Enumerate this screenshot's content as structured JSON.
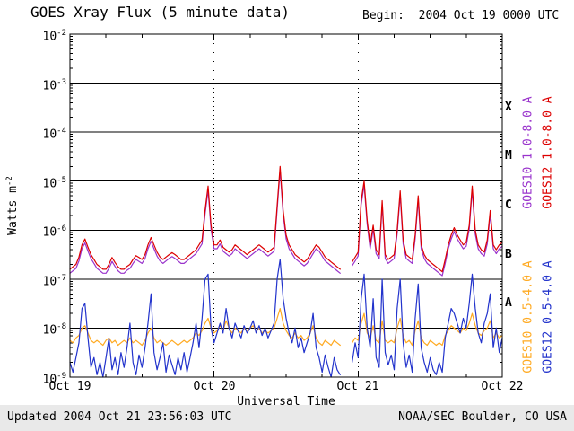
{
  "header": {
    "title": "GOES Xray Flux (5 minute data)",
    "begin_label": "Begin:  2004 Oct 19 0000 UTC"
  },
  "footer": {
    "updated": "Updated 2004 Oct 21 23:56:03 UTC",
    "source": "NOAA/SEC Boulder, CO USA"
  },
  "chart_data": {
    "type": "line",
    "title": "GOES Xray Flux (5 minute data)",
    "xlabel": "Universal Time",
    "ylabel": "Watts m^-2",
    "ylabel_base": "Watts m",
    "ylabel_exp": "-2",
    "y_scale": "log",
    "y_tick_exponents": [
      -2,
      -3,
      -4,
      -5,
      -6,
      -7,
      -8,
      -9
    ],
    "ylim_log": [
      -9,
      -2
    ],
    "x_unit": "hours since 2004 Oct 19 0000 UTC",
    "x_range_hours": [
      0,
      72
    ],
    "x_tick_labels": [
      "Oct 19",
      "Oct 20",
      "Oct 21",
      "Oct 22"
    ],
    "x_day_gridlines_hours": [
      24,
      48
    ],
    "flare_classes": [
      "X",
      "M",
      "C",
      "B",
      "A"
    ],
    "flare_class_band_centers_log": [
      -3.5,
      -4.5,
      -5.5,
      -6.5,
      -7.5
    ],
    "grid": "solid horizontal per decade, dotted vertical per day",
    "legend_position": "right, rotated",
    "series": [
      {
        "name": "GOES10 1.0-8.0 A",
        "color": "#9933cc",
        "t_step_hours": 0.5,
        "log_flux": [
          -6.88,
          -6.83,
          -6.78,
          -6.63,
          -6.38,
          -6.26,
          -6.43,
          -6.58,
          -6.68,
          -6.78,
          -6.83,
          -6.88,
          -6.88,
          -6.78,
          -6.64,
          -6.74,
          -6.83,
          -6.88,
          -6.88,
          -6.82,
          -6.78,
          -6.68,
          -6.6,
          -6.64,
          -6.68,
          -6.58,
          -6.38,
          -6.23,
          -6.38,
          -6.53,
          -6.63,
          -6.68,
          -6.63,
          -6.58,
          -6.54,
          -6.58,
          -6.63,
          -6.68,
          -6.68,
          -6.63,
          -6.58,
          -6.53,
          -6.48,
          -6.38,
          -6.28,
          -5.68,
          -5.18,
          -5.98,
          -6.38,
          -6.38,
          -6.28,
          -6.43,
          -6.48,
          -6.53,
          -6.48,
          -6.38,
          -6.43,
          -6.48,
          -6.53,
          -6.58,
          -6.53,
          -6.48,
          -6.43,
          -6.38,
          -6.43,
          -6.48,
          -6.53,
          -6.48,
          -6.43,
          -5.58,
          -4.78,
          -5.68,
          -6.18,
          -6.38,
          -6.48,
          -6.58,
          -6.63,
          -6.68,
          -6.73,
          -6.68,
          -6.58,
          -6.48,
          -6.38,
          -6.43,
          -6.53,
          -6.63,
          -6.68,
          -6.73,
          -6.78,
          -6.83,
          -6.88,
          null,
          null,
          null,
          -6.73,
          -6.63,
          -6.53,
          -5.48,
          -5.08,
          -5.88,
          -6.38,
          -5.98,
          -6.48,
          -6.58,
          -5.48,
          -6.58,
          -6.68,
          -6.63,
          -6.58,
          -6.08,
          -5.28,
          -6.28,
          -6.58,
          -6.63,
          -6.68,
          -6.18,
          -5.38,
          -6.38,
          -6.58,
          -6.68,
          -6.73,
          -6.78,
          -6.83,
          -6.88,
          -6.93,
          -6.68,
          -6.38,
          -6.18,
          -6.03,
          -6.18,
          -6.28,
          -6.38,
          -6.33,
          -5.98,
          -5.18,
          -6.08,
          -6.38,
          -6.48,
          -6.53,
          -6.28,
          -5.68,
          -6.38,
          -6.48,
          -6.38,
          -6.33
        ]
      },
      {
        "name": "GOES12 1.0-8.0 A",
        "color": "#dd0000",
        "t_step_hours": 0.5,
        "log_flux": [
          -6.8,
          -6.75,
          -6.7,
          -6.55,
          -6.3,
          -6.18,
          -6.35,
          -6.5,
          -6.6,
          -6.7,
          -6.75,
          -6.8,
          -6.8,
          -6.7,
          -6.56,
          -6.66,
          -6.75,
          -6.8,
          -6.8,
          -6.74,
          -6.7,
          -6.6,
          -6.52,
          -6.56,
          -6.6,
          -6.5,
          -6.3,
          -6.15,
          -6.3,
          -6.45,
          -6.55,
          -6.6,
          -6.55,
          -6.5,
          -6.46,
          -6.5,
          -6.55,
          -6.6,
          -6.6,
          -6.55,
          -6.5,
          -6.45,
          -6.4,
          -6.3,
          -6.2,
          -5.6,
          -5.1,
          -5.9,
          -6.3,
          -6.3,
          -6.2,
          -6.35,
          -6.4,
          -6.45,
          -6.4,
          -6.3,
          -6.35,
          -6.4,
          -6.45,
          -6.5,
          -6.45,
          -6.4,
          -6.35,
          -6.3,
          -6.35,
          -6.4,
          -6.45,
          -6.4,
          -6.35,
          -5.5,
          -4.7,
          -5.6,
          -6.1,
          -6.3,
          -6.4,
          -6.5,
          -6.55,
          -6.6,
          -6.65,
          -6.6,
          -6.5,
          -6.4,
          -6.3,
          -6.35,
          -6.45,
          -6.55,
          -6.6,
          -6.65,
          -6.7,
          -6.75,
          -6.8,
          null,
          null,
          null,
          -6.65,
          -6.55,
          -6.45,
          -5.4,
          -5.0,
          -5.8,
          -6.3,
          -5.9,
          -6.4,
          -6.5,
          -5.4,
          -6.5,
          -6.6,
          -6.55,
          -6.5,
          -6.0,
          -5.2,
          -6.2,
          -6.5,
          -6.55,
          -6.6,
          -6.1,
          -5.3,
          -6.3,
          -6.5,
          -6.6,
          -6.65,
          -6.7,
          -6.75,
          -6.8,
          -6.85,
          -6.6,
          -6.3,
          -6.1,
          -5.95,
          -6.1,
          -6.2,
          -6.3,
          -6.25,
          -5.9,
          -5.1,
          -6.0,
          -6.3,
          -6.4,
          -6.45,
          -6.2,
          -5.6,
          -6.3,
          -6.4,
          -6.3,
          -6.25
        ]
      },
      {
        "name": "GOES10 0.5-4.0 A",
        "color": "#ffaa22",
        "t_step_hours": 0.5,
        "log_flux": [
          -8.25,
          -8.3,
          -8.2,
          -8.15,
          -8.0,
          -7.95,
          -8.1,
          -8.25,
          -8.3,
          -8.25,
          -8.3,
          -8.35,
          -8.25,
          -8.2,
          -8.3,
          -8.25,
          -8.35,
          -8.3,
          -8.25,
          -8.3,
          -8.2,
          -8.3,
          -8.25,
          -8.3,
          -8.35,
          -8.25,
          -8.1,
          -8.0,
          -8.2,
          -8.3,
          -8.25,
          -8.3,
          -8.35,
          -8.3,
          -8.25,
          -8.3,
          -8.35,
          -8.3,
          -8.25,
          -8.3,
          -8.25,
          -8.2,
          -8.1,
          -8.15,
          -8.05,
          -7.9,
          -7.8,
          -8.0,
          -8.1,
          -8.05,
          -7.95,
          -8.05,
          -7.85,
          -8.0,
          -8.1,
          -8.0,
          -8.05,
          -8.1,
          -8.0,
          -8.05,
          -8.0,
          -7.95,
          -8.05,
          -8.0,
          -8.1,
          -8.05,
          -8.1,
          -8.05,
          -8.0,
          -7.8,
          -7.6,
          -7.9,
          -8.05,
          -8.15,
          -8.2,
          -8.1,
          -8.2,
          -8.15,
          -8.25,
          -8.2,
          -8.1,
          -7.95,
          -8.2,
          -8.3,
          -8.35,
          -8.25,
          -8.3,
          -8.35,
          -8.25,
          -8.3,
          -8.35,
          null,
          null,
          null,
          -8.3,
          -8.2,
          -8.25,
          -7.9,
          -7.7,
          -8.1,
          -8.2,
          -7.95,
          -8.25,
          -8.3,
          -7.85,
          -8.25,
          -8.3,
          -8.25,
          -8.3,
          -8.0,
          -7.8,
          -8.15,
          -8.3,
          -8.25,
          -8.35,
          -8.05,
          -7.85,
          -8.2,
          -8.3,
          -8.35,
          -8.25,
          -8.3,
          -8.35,
          -8.3,
          -8.35,
          -8.15,
          -8.05,
          -7.95,
          -8.0,
          -8.05,
          -8.1,
          -8.0,
          -8.05,
          -7.9,
          -7.7,
          -7.95,
          -8.1,
          -8.15,
          -8.05,
          -8.0,
          -7.85,
          -8.2,
          -8.1,
          -8.2,
          -8.15
        ]
      },
      {
        "name": "GOES12 0.5-4.0 A",
        "color": "#2233cc",
        "t_step_hours": 0.5,
        "log_flux": [
          -8.7,
          -8.9,
          -8.6,
          -8.3,
          -7.6,
          -7.5,
          -8.2,
          -8.8,
          -8.6,
          -8.95,
          -8.7,
          -9.0,
          -8.6,
          -8.2,
          -8.85,
          -8.6,
          -8.95,
          -8.5,
          -8.8,
          -8.4,
          -7.9,
          -8.7,
          -8.95,
          -8.55,
          -8.8,
          -8.4,
          -7.9,
          -7.3,
          -8.5,
          -8.85,
          -8.6,
          -8.3,
          -8.9,
          -8.55,
          -8.75,
          -8.95,
          -8.6,
          -8.85,
          -8.5,
          -8.9,
          -8.6,
          -8.3,
          -7.9,
          -8.4,
          -7.8,
          -7.0,
          -6.9,
          -8.0,
          -8.3,
          -8.1,
          -7.9,
          -8.1,
          -7.6,
          -8.0,
          -8.2,
          -7.9,
          -8.05,
          -8.2,
          -7.95,
          -8.1,
          -8.0,
          -7.85,
          -8.1,
          -7.95,
          -8.15,
          -8.0,
          -8.2,
          -8.05,
          -7.9,
          -7.0,
          -6.6,
          -7.4,
          -7.8,
          -8.1,
          -8.3,
          -8.0,
          -8.4,
          -8.2,
          -8.5,
          -8.3,
          -8.1,
          -7.7,
          -8.4,
          -8.6,
          -8.9,
          -8.55,
          -8.8,
          -9.0,
          -8.6,
          -8.85,
          -8.95,
          null,
          null,
          null,
          -8.7,
          -8.3,
          -8.6,
          -7.4,
          -6.9,
          -8.0,
          -8.4,
          -7.4,
          -8.6,
          -8.8,
          -7.0,
          -8.5,
          -8.75,
          -8.55,
          -8.85,
          -7.6,
          -7.0,
          -8.3,
          -8.8,
          -8.55,
          -8.9,
          -7.8,
          -7.1,
          -8.4,
          -8.7,
          -8.9,
          -8.6,
          -8.85,
          -8.95,
          -8.7,
          -8.9,
          -8.2,
          -7.9,
          -7.6,
          -7.7,
          -7.9,
          -8.1,
          -7.8,
          -8.0,
          -7.5,
          -6.9,
          -7.6,
          -8.1,
          -8.3,
          -7.9,
          -7.7,
          -7.3,
          -8.4,
          -8.0,
          -8.5,
          -8.2
        ]
      }
    ]
  }
}
